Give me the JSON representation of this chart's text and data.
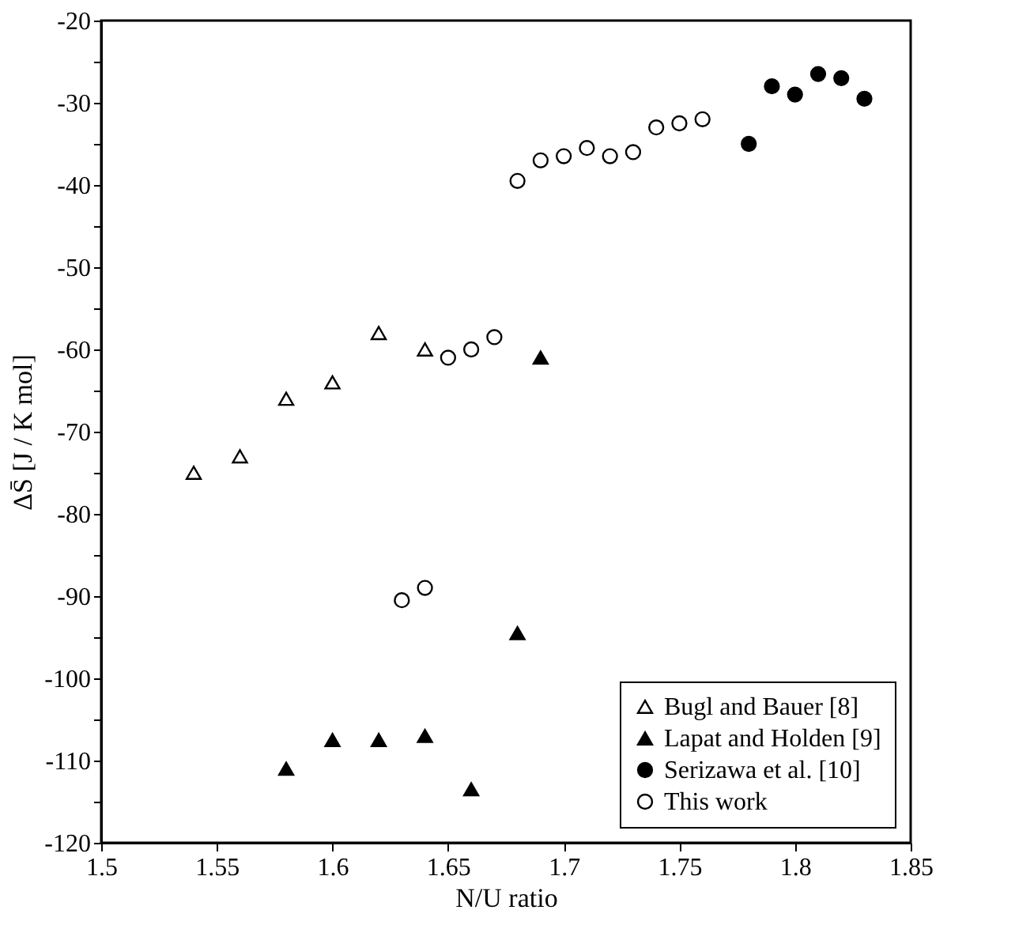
{
  "chart_data": {
    "type": "scatter",
    "xlabel": "N/U ratio",
    "ylabel": "ΔS̄ [J / K mol]",
    "xlim": [
      1.5,
      1.85
    ],
    "xticks": [
      1.5,
      1.55,
      1.6,
      1.65,
      1.7,
      1.75,
      1.8,
      1.85
    ],
    "ylim": [
      -120,
      -20
    ],
    "yticks": [
      -120,
      {
        "value": -115,
        "label": null
      },
      -110,
      {
        "value": -105,
        "label": null
      },
      -100,
      {
        "value": -95,
        "label": null
      },
      -90,
      {
        "value": -85,
        "label": null
      },
      -80,
      {
        "value": -75,
        "label": null
      },
      -70,
      {
        "value": -65,
        "label": null
      },
      -60,
      {
        "value": -55,
        "label": null
      },
      -50,
      {
        "value": -45,
        "label": null
      },
      -40,
      {
        "value": -35,
        "label": null
      },
      -30,
      {
        "value": -25,
        "label": null
      },
      -20
    ],
    "grid": false,
    "legend": "bottom right",
    "series": [
      {
        "name": "Bugl and Bauer [8]",
        "color": "#ffffff",
        "marker": "triangle",
        "x": [
          1.54,
          1.56,
          1.58,
          1.6,
          1.62,
          1.64
        ],
        "values": [
          -75,
          -73,
          -66,
          -64,
          -58,
          -60
        ]
      },
      {
        "name": "Lapat and Holden [9]",
        "color": "#000000",
        "marker": "triangle",
        "x": [
          1.58,
          1.6,
          1.62,
          1.64,
          1.66,
          1.68,
          1.69
        ],
        "values": [
          -111,
          -107.5,
          -107.5,
          -107,
          -113.5,
          -94.5,
          -61
        ]
      },
      {
        "name": "Serizawa et al. [10]",
        "color": "#000000",
        "marker": "circle",
        "x": [
          1.78,
          1.79,
          1.8,
          1.81,
          1.82,
          1.83
        ],
        "values": [
          -35,
          -28,
          -29,
          -26.5,
          -27,
          -29.5
        ]
      },
      {
        "name": "This work",
        "color": "#ffffff",
        "marker": "circle",
        "x": [
          1.63,
          1.64,
          1.65,
          1.66,
          1.67,
          1.68,
          1.69,
          1.7,
          1.71,
          1.72,
          1.73,
          1.74,
          1.75,
          1.76
        ],
        "values": [
          -90.5,
          -89,
          -61,
          -60,
          -58.5,
          -39.5,
          -37,
          -36.5,
          -35.5,
          -36.5,
          -36,
          -33,
          -32.5,
          -32
        ]
      }
    ]
  }
}
